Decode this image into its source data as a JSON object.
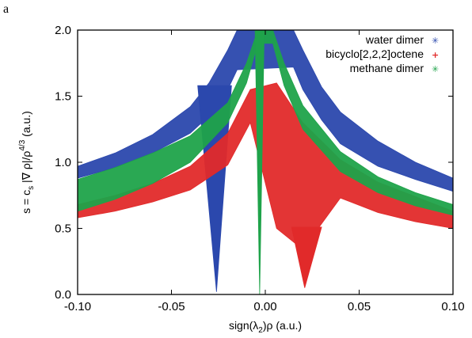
{
  "panel_label": "a",
  "chart_data": {
    "type": "scatter",
    "xlabel": "sign(λ2)ρ (a.u.)",
    "xlabel_parts": {
      "pre": "sign(λ",
      "sub": "2",
      "post": ")ρ (a.u.)"
    },
    "ylabel": "s = c_s |∇ ρ|/ρ^4/3 (a.u.)",
    "ylabel_parts": {
      "a": "s = c",
      "sub": "s",
      "b": " |∇ ρ|/ρ",
      "sup": "4/3",
      "c": " (a.u.)"
    },
    "xlim": [
      -0.1,
      0.1
    ],
    "ylim": [
      0.0,
      2.0
    ],
    "xticks": [
      -0.1,
      -0.05,
      0.0,
      0.05,
      0.1
    ],
    "xtick_labels": [
      "-0.10",
      "-0.05",
      "0.00",
      "0.05",
      "0.10"
    ],
    "yticks": [
      0.0,
      0.5,
      1.0,
      1.5,
      2.0
    ],
    "ytick_labels": [
      "0.0",
      "0.5",
      "1.0",
      "1.5",
      "2.0"
    ],
    "legend_position": "top-right",
    "series": [
      {
        "name": "water dimer",
        "color": "#2b48ad",
        "marker": "✳",
        "upper_envelope": [
          [
            -0.1,
            0.97
          ],
          [
            -0.08,
            1.07
          ],
          [
            -0.06,
            1.21
          ],
          [
            -0.04,
            1.42
          ],
          [
            -0.03,
            1.6
          ],
          [
            -0.02,
            1.85
          ],
          [
            -0.015,
            2.0
          ],
          [
            0.015,
            2.0
          ],
          [
            0.02,
            1.85
          ],
          [
            0.03,
            1.57
          ],
          [
            0.04,
            1.38
          ],
          [
            0.06,
            1.16
          ],
          [
            0.08,
            1.0
          ],
          [
            0.1,
            0.88
          ]
        ],
        "lower_envelope": [
          [
            -0.1,
            0.88
          ],
          [
            -0.08,
            0.96
          ],
          [
            -0.06,
            1.07
          ],
          [
            -0.04,
            1.22
          ],
          [
            -0.03,
            1.35
          ],
          [
            -0.02,
            1.55
          ],
          [
            -0.015,
            1.7
          ],
          [
            0.015,
            1.72
          ],
          [
            0.02,
            1.55
          ],
          [
            0.03,
            1.32
          ],
          [
            0.04,
            1.14
          ],
          [
            0.06,
            0.97
          ],
          [
            0.08,
            0.87
          ],
          [
            0.1,
            0.78
          ]
        ],
        "spike": {
          "x_left": -0.036,
          "x_tip": -0.026,
          "x_right": -0.018,
          "tip_y": 0.02
        }
      },
      {
        "name": "bicyclo[2,2,2]octene",
        "color": "#e12a2a",
        "marker": "+",
        "upper_envelope": [
          [
            -0.1,
            0.68
          ],
          [
            -0.08,
            0.75
          ],
          [
            -0.06,
            0.84
          ],
          [
            -0.04,
            0.97
          ],
          [
            -0.02,
            1.22
          ],
          [
            -0.008,
            1.55
          ],
          [
            0.006,
            1.6
          ],
          [
            0.02,
            1.3
          ],
          [
            0.04,
            1.02
          ],
          [
            0.06,
            0.85
          ],
          [
            0.08,
            0.74
          ],
          [
            0.1,
            0.63
          ]
        ],
        "lower_envelope": [
          [
            -0.1,
            0.58
          ],
          [
            -0.08,
            0.63
          ],
          [
            -0.06,
            0.7
          ],
          [
            -0.04,
            0.79
          ],
          [
            -0.02,
            0.98
          ],
          [
            -0.008,
            1.3
          ],
          [
            0.006,
            0.5
          ],
          [
            0.02,
            0.34
          ],
          [
            0.04,
            0.73
          ],
          [
            0.06,
            0.62
          ],
          [
            0.08,
            0.55
          ],
          [
            0.1,
            0.5
          ]
        ],
        "spike": {
          "x_left": 0.014,
          "x_tip": 0.021,
          "x_right": 0.03,
          "tip_y": 0.05
        }
      },
      {
        "name": "methane dimer",
        "color": "#1fa34a",
        "marker": "✳",
        "upper_envelope": [
          [
            -0.1,
            0.87
          ],
          [
            -0.08,
            0.96
          ],
          [
            -0.06,
            1.07
          ],
          [
            -0.04,
            1.2
          ],
          [
            -0.02,
            1.45
          ],
          [
            -0.01,
            1.75
          ],
          [
            -0.004,
            2.0
          ],
          [
            0.004,
            2.0
          ],
          [
            0.01,
            1.75
          ],
          [
            0.02,
            1.43
          ],
          [
            0.04,
            1.08
          ],
          [
            0.06,
            0.89
          ],
          [
            0.08,
            0.77
          ],
          [
            0.1,
            0.68
          ]
        ],
        "lower_envelope": [
          [
            -0.1,
            0.63
          ],
          [
            -0.08,
            0.72
          ],
          [
            -0.06,
            0.84
          ],
          [
            -0.04,
            1.0
          ],
          [
            -0.02,
            1.3
          ],
          [
            -0.01,
            1.6
          ],
          [
            -0.004,
            1.9
          ],
          [
            0.004,
            1.9
          ],
          [
            0.01,
            1.58
          ],
          [
            0.02,
            1.25
          ],
          [
            0.04,
            0.93
          ],
          [
            0.06,
            0.77
          ],
          [
            0.08,
            0.67
          ],
          [
            0.1,
            0.6
          ]
        ],
        "spike": {
          "x_left": -0.0055,
          "x_tip": -0.003,
          "x_right": -0.0005,
          "tip_y": 0.0
        }
      }
    ]
  }
}
